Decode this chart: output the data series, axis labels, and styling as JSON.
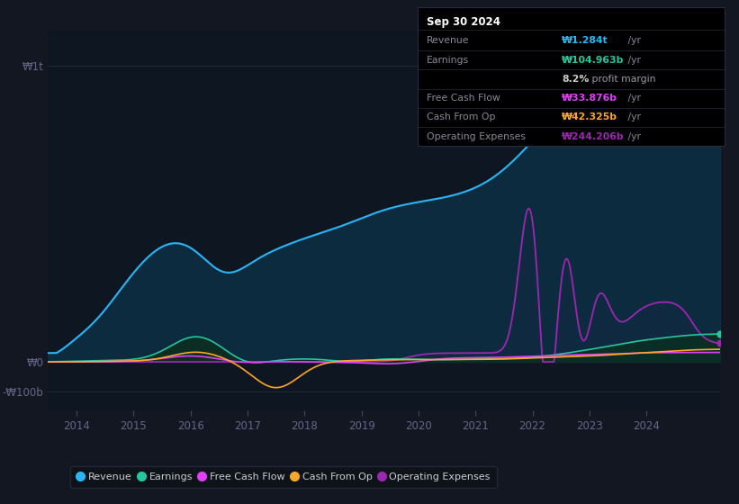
{
  "background_color": "#131722",
  "chart_bg": "#0d1117",
  "colors": {
    "revenue": "#29b6f6",
    "revenue_fill": "#1a4a6e",
    "earnings": "#26c6a0",
    "earnings_fill": "#0d3d30",
    "free_cash_flow": "#e040fb",
    "cash_from_op": "#ffa726",
    "operating_expenses": "#9c27b0",
    "operating_expenses_fill": "#2d0a4e"
  },
  "grid_color": "#1e2a3a",
  "tick_color": "#666688",
  "table_bg": "#000000",
  "table_border": "#333355",
  "y_ticks": [
    1000,
    0,
    -100
  ],
  "y_tick_labels": [
    "₩1t",
    "₩0",
    "-₩100b"
  ],
  "x_ticks": [
    2014,
    2015,
    2016,
    2017,
    2018,
    2019,
    2020,
    2021,
    2022,
    2023,
    2024
  ],
  "xlim": [
    2013.5,
    2025.3
  ],
  "ylim": [
    -165,
    1120
  ],
  "legend": [
    {
      "label": "Revenue",
      "color": "#29b6f6"
    },
    {
      "label": "Earnings",
      "color": "#26c6a0"
    },
    {
      "label": "Free Cash Flow",
      "color": "#e040fb"
    },
    {
      "label": "Cash From Op",
      "color": "#ffa726"
    },
    {
      "label": "Operating Expenses",
      "color": "#9c27b0"
    }
  ],
  "table_title": "Sep 30 2024",
  "table_rows": [
    {
      "label": "Revenue",
      "value": "₩1.284t",
      "suffix": " /yr",
      "color": "#29b6f6"
    },
    {
      "label": "Earnings",
      "value": "₩104.963b",
      "suffix": " /yr",
      "color": "#26c6a0"
    },
    {
      "label": "",
      "value": "8.2%",
      "suffix": " profit margin",
      "color": "#cccccc"
    },
    {
      "label": "Free Cash Flow",
      "value": "₩33.876b",
      "suffix": " /yr",
      "color": "#e040fb"
    },
    {
      "label": "Cash From Op",
      "value": "₩42.325b",
      "suffix": " /yr",
      "color": "#ffa726"
    },
    {
      "label": "Operating Expenses",
      "value": "₩244.206b",
      "suffix": " /yr",
      "color": "#9c27b0"
    }
  ]
}
